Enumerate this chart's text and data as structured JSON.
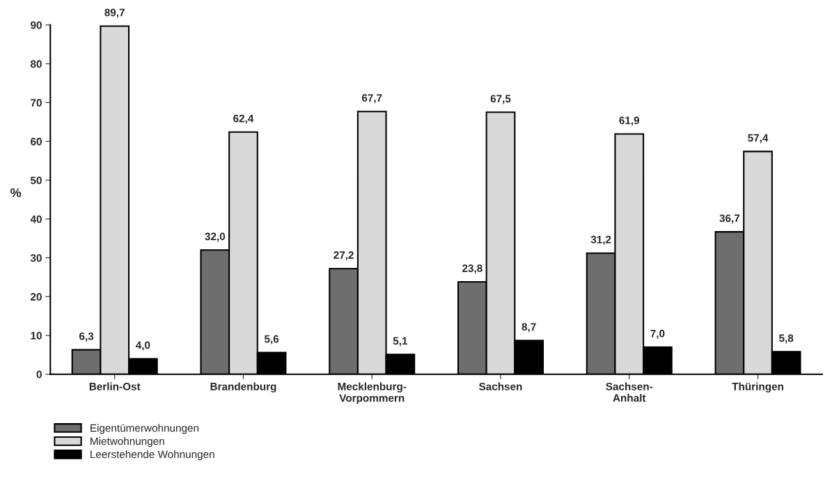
{
  "chart_data": {
    "type": "bar",
    "ylabel": "%",
    "categories": [
      "Berlin-Ost",
      "Brandenburg",
      "Mecklenburg-\nVorpommern",
      "Sachsen",
      "Sachsen-\nAnhalt",
      "Thüringen"
    ],
    "series": [
      {
        "name": "Eigentümerwohnungen",
        "color": "#6e6e6e",
        "values": [
          6.3,
          32.0,
          27.2,
          23.8,
          31.2,
          36.7
        ],
        "value_labels": [
          "6,3",
          "32,0",
          "27,2",
          "23,8",
          "31,2",
          "36,7"
        ]
      },
      {
        "name": "Mietwohnungen",
        "color": "#d9d9d9",
        "values": [
          89.7,
          62.4,
          67.7,
          67.5,
          61.9,
          57.4
        ],
        "value_labels": [
          "89,7",
          "62,4",
          "67,7",
          "67,5",
          "61,9",
          "57,4"
        ]
      },
      {
        "name": "Leerstehende Wohnungen",
        "color": "#000000",
        "values": [
          4.0,
          5.6,
          5.1,
          8.7,
          7.0,
          5.8
        ],
        "value_labels": [
          "4,0",
          "5,6",
          "5,1",
          "8,7",
          "7,0",
          "5,8"
        ]
      }
    ],
    "ylim": [
      0,
      90
    ],
    "yticks": [
      0,
      10,
      20,
      30,
      40,
      50,
      60,
      70,
      80,
      90
    ],
    "grid": false,
    "legend": "bottom left"
  }
}
